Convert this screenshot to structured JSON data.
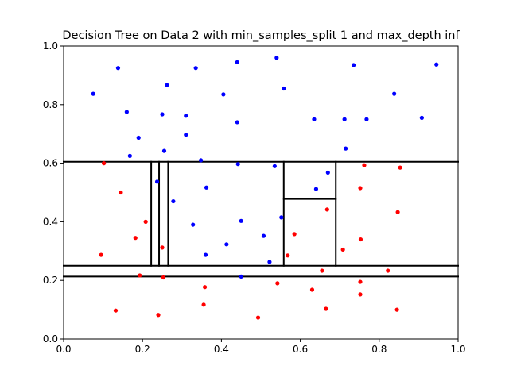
{
  "chart_data": {
    "type": "scatter",
    "title": "Decision Tree on Data 2 with min_samples_split 1 and max_depth inf",
    "xlabel": "",
    "ylabel": "",
    "xlim": [
      0,
      1
    ],
    "ylim": [
      0,
      1
    ],
    "xticks": [
      "0.0",
      "0.2",
      "0.4",
      "0.6",
      "0.8",
      "1.0"
    ],
    "yticks": [
      "0.0",
      "0.2",
      "0.4",
      "0.6",
      "0.8",
      "1.0"
    ],
    "grid": false,
    "series": [
      {
        "color": "#0000ff",
        "points": [
          [
            0.075,
            0.837
          ],
          [
            0.138,
            0.925
          ],
          [
            0.16,
            0.775
          ],
          [
            0.19,
            0.687
          ],
          [
            0.168,
            0.625
          ],
          [
            0.25,
            0.767
          ],
          [
            0.262,
            0.867
          ],
          [
            0.255,
            0.642
          ],
          [
            0.31,
            0.762
          ],
          [
            0.31,
            0.697
          ],
          [
            0.335,
            0.925
          ],
          [
            0.405,
            0.835
          ],
          [
            0.44,
            0.945
          ],
          [
            0.44,
            0.74
          ],
          [
            0.54,
            0.96
          ],
          [
            0.558,
            0.855
          ],
          [
            0.635,
            0.75
          ],
          [
            0.712,
            0.75
          ],
          [
            0.735,
            0.935
          ],
          [
            0.768,
            0.75
          ],
          [
            0.838,
            0.837
          ],
          [
            0.908,
            0.755
          ],
          [
            0.945,
            0.937
          ],
          [
            0.715,
            0.65
          ],
          [
            0.348,
            0.61
          ],
          [
            0.442,
            0.597
          ],
          [
            0.535,
            0.59
          ],
          [
            0.67,
            0.568
          ],
          [
            0.237,
            0.537
          ],
          [
            0.362,
            0.517
          ],
          [
            0.64,
            0.512
          ],
          [
            0.278,
            0.47
          ],
          [
            0.552,
            0.415
          ],
          [
            0.45,
            0.403
          ],
          [
            0.328,
            0.39
          ],
          [
            0.507,
            0.352
          ],
          [
            0.413,
            0.323
          ],
          [
            0.36,
            0.287
          ],
          [
            0.522,
            0.263
          ],
          [
            0.45,
            0.213
          ]
        ]
      },
      {
        "color": "#ff0000",
        "points": [
          [
            0.102,
            0.6
          ],
          [
            0.145,
            0.5
          ],
          [
            0.208,
            0.4
          ],
          [
            0.182,
            0.345
          ],
          [
            0.095,
            0.287
          ],
          [
            0.25,
            0.312
          ],
          [
            0.193,
            0.217
          ],
          [
            0.253,
            0.21
          ],
          [
            0.358,
            0.177
          ],
          [
            0.355,
            0.117
          ],
          [
            0.132,
            0.097
          ],
          [
            0.24,
            0.082
          ],
          [
            0.493,
            0.073
          ],
          [
            0.568,
            0.285
          ],
          [
            0.585,
            0.358
          ],
          [
            0.542,
            0.19
          ],
          [
            0.63,
            0.168
          ],
          [
            0.655,
            0.233
          ],
          [
            0.665,
            0.103
          ],
          [
            0.668,
            0.442
          ],
          [
            0.708,
            0.305
          ],
          [
            0.752,
            0.515
          ],
          [
            0.753,
            0.34
          ],
          [
            0.762,
            0.593
          ],
          [
            0.752,
            0.195
          ],
          [
            0.752,
            0.152
          ],
          [
            0.822,
            0.233
          ],
          [
            0.845,
            0.1
          ],
          [
            0.847,
            0.433
          ],
          [
            0.853,
            0.585
          ]
        ]
      }
    ],
    "boundaries": [
      [
        0,
        0.605,
        1,
        0.605
      ],
      [
        0,
        0.25,
        1,
        0.25
      ],
      [
        0,
        0.213,
        1,
        0.213
      ],
      [
        0.222,
        0.25,
        0.222,
        0.605
      ],
      [
        0.242,
        0.25,
        0.242,
        0.605
      ],
      [
        0.265,
        0.25,
        0.265,
        0.605
      ],
      [
        0.558,
        0.25,
        0.558,
        0.605
      ],
      [
        0.69,
        0.25,
        0.69,
        0.605
      ],
      [
        0.558,
        0.478,
        0.69,
        0.478
      ]
    ]
  }
}
